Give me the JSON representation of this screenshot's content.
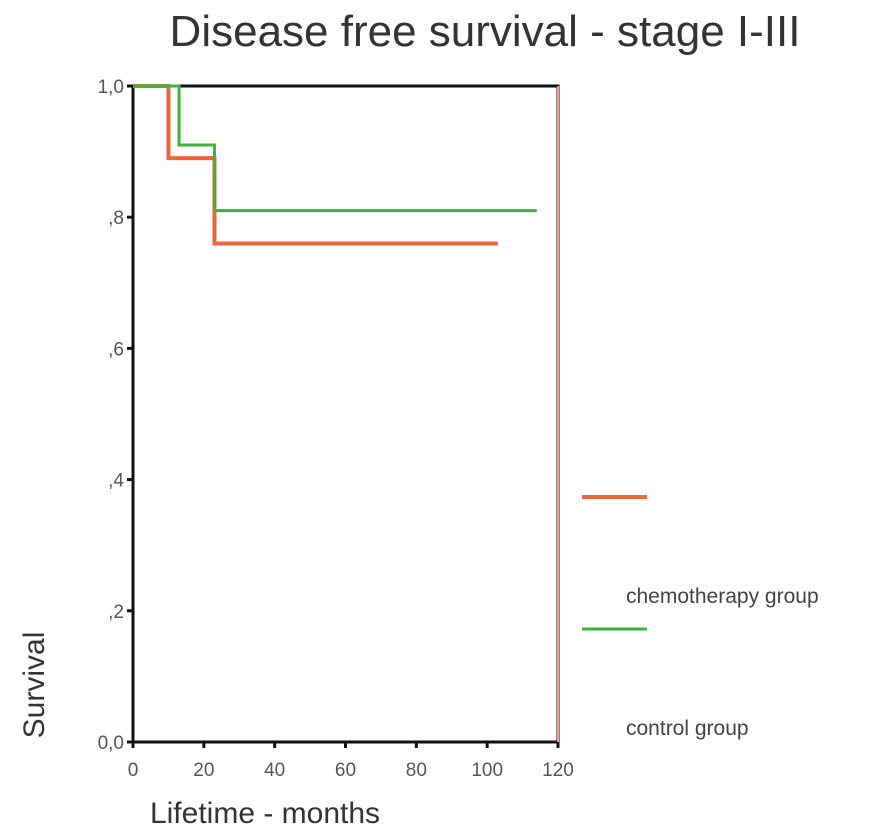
{
  "chart_data": {
    "type": "line",
    "title": "Disease free survival - stage I-III",
    "xlabel": "Lifetime - months",
    "ylabel": "Survival",
    "xlim": [
      0,
      120
    ],
    "ylim": [
      0,
      1.0
    ],
    "xticks": [
      0,
      20,
      40,
      60,
      80,
      100,
      120
    ],
    "xtick_labels": [
      "0",
      "20",
      "40",
      "60",
      "80",
      "100",
      "120"
    ],
    "yticks": [
      0,
      0.2,
      0.4,
      0.6,
      0.8,
      1.0
    ],
    "ytick_labels": [
      "0,0",
      ",2",
      ",4",
      ",6",
      ",8",
      "1,0"
    ],
    "grid": false,
    "legend_position": "right",
    "series": [
      {
        "name": "chemotherapy group",
        "color": "#f0643c",
        "step": true,
        "x": [
          0,
          10,
          23,
          103
        ],
        "y": [
          1.0,
          0.89,
          0.76,
          0.76
        ]
      },
      {
        "name": "control group",
        "color": "#3cb43c",
        "step": true,
        "x": [
          0,
          13,
          23,
          114
        ],
        "y": [
          1.0,
          0.91,
          0.81,
          0.81
        ]
      }
    ]
  }
}
